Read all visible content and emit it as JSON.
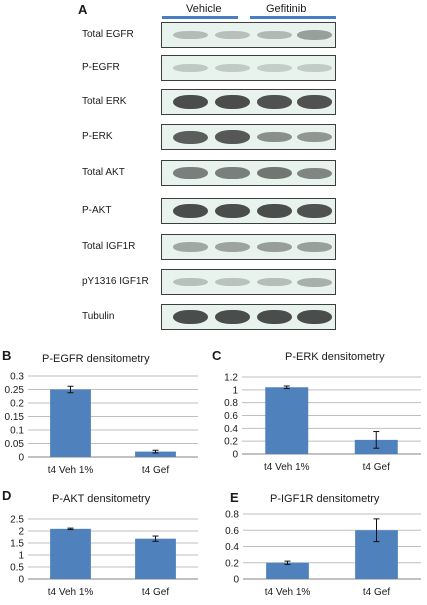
{
  "panel_a": {
    "letter": "A",
    "groups": [
      "Vehicle",
      "Gefitinib"
    ],
    "rows": [
      {
        "label": "Total EGFR",
        "intensity": [
          0.18,
          0.16,
          0.2,
          0.35
        ]
      },
      {
        "label": "P-EGFR",
        "intensity": [
          0.1,
          0.09,
          0.07,
          0.08
        ]
      },
      {
        "label": "Total ERK",
        "intensity": [
          0.85,
          0.85,
          0.82,
          0.82
        ]
      },
      {
        "label": "P-ERK",
        "intensity": [
          0.75,
          0.78,
          0.45,
          0.4
        ]
      },
      {
        "label": "Total AKT",
        "intensity": [
          0.55,
          0.55,
          0.6,
          0.5
        ]
      },
      {
        "label": "P-AKT",
        "intensity": [
          0.85,
          0.85,
          0.85,
          0.82
        ]
      },
      {
        "label": "Total IGF1R",
        "intensity": [
          0.3,
          0.32,
          0.36,
          0.35
        ]
      },
      {
        "label": "pY1316 IGF1R",
        "intensity": [
          0.15,
          0.14,
          0.17,
          0.25
        ]
      },
      {
        "label": "Tubulin",
        "intensity": [
          0.85,
          0.85,
          0.85,
          0.85
        ]
      }
    ]
  },
  "colors": {
    "bar": "#4f81bd",
    "grid": "#bfbfbf",
    "axis": "#868686",
    "group_line": "#4a7ec4"
  },
  "chart_data": [
    {
      "panel": "B",
      "type": "bar",
      "title": "P-EGFR densitometry",
      "categories": [
        "t4 Veh 1%",
        "t4 Gef"
      ],
      "values": [
        0.25,
        0.02
      ],
      "errors": [
        0.012,
        0.005
      ],
      "yticks": [
        "0",
        "0.05",
        "0.1",
        "0.15",
        "0.2",
        "0.25",
        "0.3"
      ],
      "ylim": [
        0,
        0.3
      ],
      "grid": true
    },
    {
      "panel": "C",
      "type": "bar",
      "title": "P-ERK densitometry",
      "categories": [
        "t4 Veh 1%",
        "t4 Gef"
      ],
      "values": [
        1.04,
        0.22
      ],
      "errors": [
        0.02,
        0.13
      ],
      "yticks": [
        "0",
        "0.2",
        "0.4",
        "0.6",
        "0.8",
        "1",
        "1.2"
      ],
      "ylim": [
        0,
        1.2
      ],
      "grid": true
    },
    {
      "panel": "D",
      "type": "bar",
      "title": "P-AKT densitometry",
      "categories": [
        "t4 Veh 1%",
        "t4 Gef"
      ],
      "values": [
        2.09,
        1.68
      ],
      "errors": [
        0.03,
        0.11
      ],
      "yticks": [
        "0",
        "0.5",
        "1",
        "1.5",
        "2",
        "2.5"
      ],
      "ylim": [
        0,
        2.5
      ],
      "grid": true
    },
    {
      "panel": "E",
      "type": "bar",
      "title": "P-IGF1R densitometry",
      "categories": [
        "t4 Veh 1%",
        "t4 Gef"
      ],
      "values": [
        0.2,
        0.6
      ],
      "errors": [
        0.02,
        0.14
      ],
      "yticks": [
        "0",
        "0.2",
        "0.4",
        "0.6",
        "0.8"
      ],
      "ylim": [
        0,
        0.8
      ],
      "grid": true
    }
  ]
}
